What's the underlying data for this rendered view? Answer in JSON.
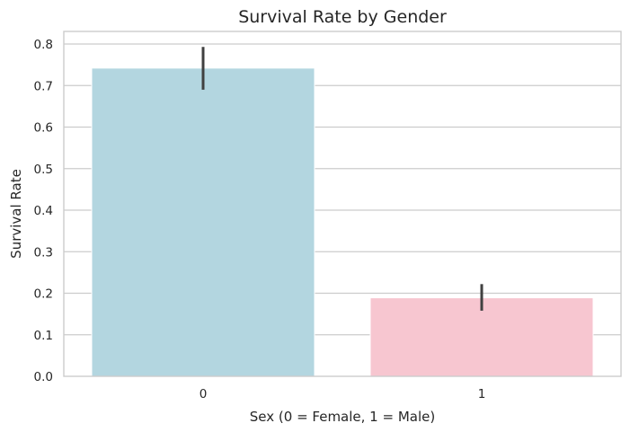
{
  "chart_data": {
    "type": "bar",
    "title": "Survival Rate by Gender",
    "xlabel": "Sex (0 = Female, 1 = Male)",
    "ylabel": "Survival Rate",
    "categories": [
      "0",
      "1"
    ],
    "values": [
      0.742,
      0.189
    ],
    "error_bars": [
      [
        0.69,
        0.793
      ],
      [
        0.158,
        0.222
      ]
    ],
    "colors": [
      "#b3d6e0",
      "#f7c6d0"
    ],
    "error_color": "#404040",
    "ylim": [
      0,
      0.8
    ],
    "yticks": [
      0.0,
      0.1,
      0.2,
      0.3,
      0.4,
      0.5,
      0.6,
      0.7,
      0.8
    ],
    "ytick_labels": [
      "0.0",
      "0.1",
      "0.2",
      "0.3",
      "0.4",
      "0.5",
      "0.6",
      "0.7",
      "0.8"
    ],
    "grid": true,
    "legend": null
  }
}
